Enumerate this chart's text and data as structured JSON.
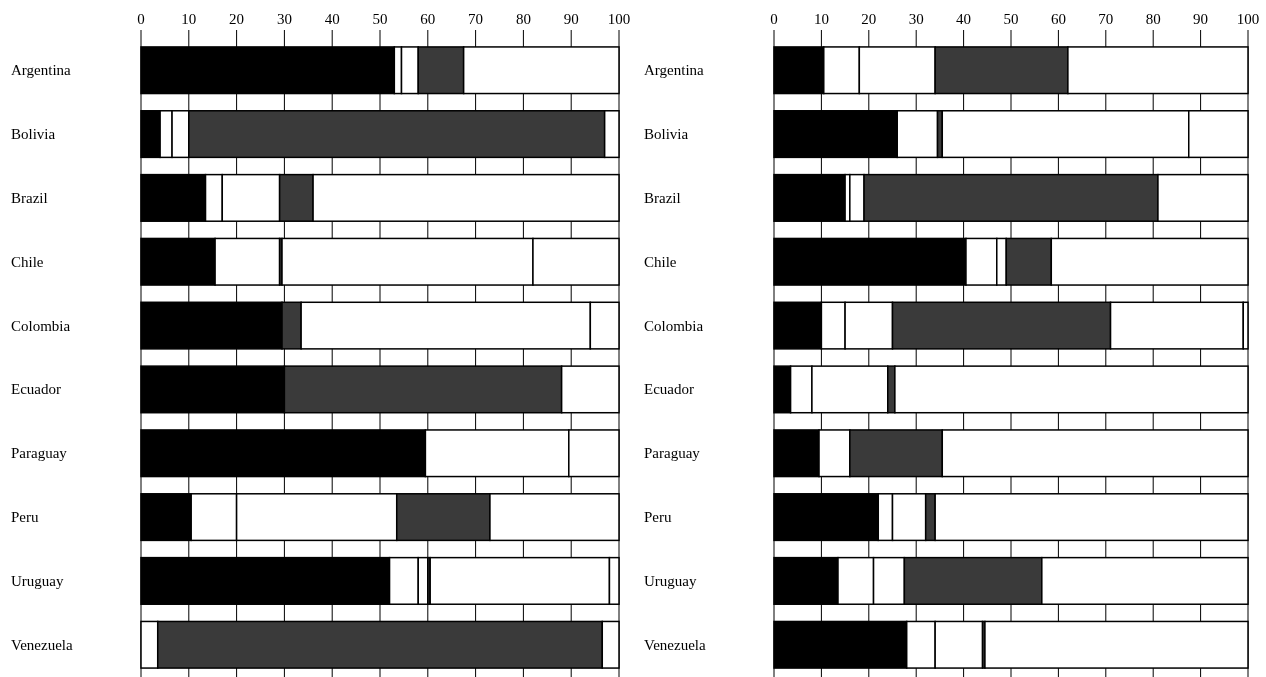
{
  "chart_data": [
    {
      "type": "bar",
      "orientation": "horizontal",
      "stacked": true,
      "grid": "x",
      "xlim": [
        0,
        100
      ],
      "xticks": [
        0,
        10,
        20,
        30,
        40,
        50,
        60,
        70,
        80,
        90,
        100
      ],
      "categories": [
        "Argentina",
        "Bolivia",
        "Brazil",
        "Chile",
        "Colombia",
        "Ecuador",
        "Paraguay",
        "Peru",
        "Uruguay",
        "Venezuela"
      ],
      "series": [
        {
          "color": "#000000",
          "values": [
            53,
            4,
            13.5,
            15.5,
            29.5,
            30,
            59.5,
            10.5,
            52,
            0
          ]
        },
        {
          "color": "#ffffff",
          "values": [
            1.5,
            2.5,
            3.5,
            13.5,
            0,
            0,
            0,
            9.5,
            6,
            3.5
          ]
        },
        {
          "color": "#ffffff",
          "values": [
            3.5,
            3.5,
            12,
            0,
            0,
            0,
            0,
            33.5,
            2,
            0
          ]
        },
        {
          "color": "#3a3a3a",
          "values": [
            9.5,
            87,
            7,
            0.5,
            4,
            58,
            0,
            19.5,
            0.5,
            93
          ]
        },
        {
          "color": "#ffffff",
          "values": [
            32.5,
            3,
            64,
            52.5,
            60.5,
            12,
            30,
            27,
            37.5,
            3.5
          ]
        },
        {
          "color": "#ffffff",
          "values": [
            0,
            0,
            0,
            18,
            6,
            0,
            10.5,
            0,
            2,
            0
          ]
        }
      ]
    },
    {
      "type": "bar",
      "orientation": "horizontal",
      "stacked": true,
      "grid": "x",
      "xlim": [
        0,
        100
      ],
      "xticks": [
        0,
        10,
        20,
        30,
        40,
        50,
        60,
        70,
        80,
        90,
        100
      ],
      "categories": [
        "Argentina",
        "Bolivia",
        "Brazil",
        "Chile",
        "Colombia",
        "Ecuador",
        "Paraguay",
        "Peru",
        "Uruguay",
        "Venezuela"
      ],
      "series": [
        {
          "color": "#000000",
          "values": [
            10.5,
            26,
            15,
            40.5,
            10,
            3.5,
            9.5,
            22,
            13.5,
            28
          ]
        },
        {
          "color": "#ffffff",
          "values": [
            7.5,
            8.5,
            1,
            6.5,
            5,
            4.5,
            6.5,
            3,
            7.5,
            6
          ]
        },
        {
          "color": "#ffffff",
          "values": [
            16,
            0,
            3,
            2,
            10,
            16,
            0,
            7,
            6.5,
            10
          ]
        },
        {
          "color": "#3a3a3a",
          "values": [
            28,
            1,
            62,
            9.5,
            46,
            1.5,
            19.5,
            2,
            29,
            0.5
          ]
        },
        {
          "color": "#ffffff",
          "values": [
            38,
            52,
            19,
            41.5,
            28,
            74.5,
            64.5,
            66,
            43.5,
            55.5
          ]
        },
        {
          "color": "#ffffff",
          "values": [
            0,
            12.5,
            0,
            0,
            1,
            0,
            0,
            0,
            0,
            0
          ]
        }
      ]
    }
  ]
}
